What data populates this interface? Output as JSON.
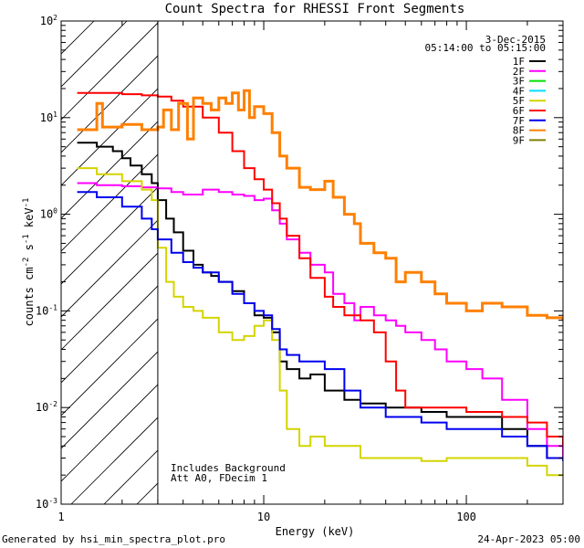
{
  "chart_data": {
    "type": "line",
    "title": "Count Spectra for RHESSI Front Segments",
    "xlabel": "Energy (keV)",
    "ylabel": "counts cm",
    "ylabel_sup1": "-2",
    "ylabel_mid": " s",
    "ylabel_sup2": "-1",
    "ylabel_tail": " keV",
    "ylabel_sup3": "-1",
    "xscale": "log",
    "yscale": "log",
    "xlim": [
      1,
      300
    ],
    "ylim": [
      0.001,
      100
    ],
    "x_ticks": [
      {
        "value": 1,
        "label": "1"
      },
      {
        "value": 10,
        "label": "10"
      },
      {
        "value": 100,
        "label": "100"
      }
    ],
    "y_ticks": [
      {
        "value": 0.001,
        "base": "10",
        "exp": "-3"
      },
      {
        "value": 0.01,
        "base": "10",
        "exp": "-2"
      },
      {
        "value": 0.1,
        "base": "10",
        "exp": "-1"
      },
      {
        "value": 1,
        "base": "10",
        "exp": "0"
      },
      {
        "value": 10,
        "base": "10",
        "exp": "1"
      },
      {
        "value": 100,
        "base": "10",
        "exp": "2"
      }
    ],
    "hatched_region": {
      "from": 1,
      "to": 3
    },
    "date": "3-Dec-2015",
    "time_range": "05:14:00 to 05:15:00",
    "annotations": [
      "Includes Background",
      "Att A0, FDecim 1"
    ],
    "series": [
      {
        "name": "1F",
        "color": "#000000",
        "width": 2,
        "points": [
          [
            1.2,
            5.5
          ],
          [
            1.5,
            5.0
          ],
          [
            1.8,
            4.5
          ],
          [
            2.0,
            3.8
          ],
          [
            2.2,
            3.2
          ],
          [
            2.5,
            2.6
          ],
          [
            2.8,
            2.1
          ],
          [
            3.0,
            1.4
          ],
          [
            3.3,
            0.9
          ],
          [
            3.6,
            0.65
          ],
          [
            4.0,
            0.42
          ],
          [
            4.5,
            0.3
          ],
          [
            5.0,
            0.25
          ],
          [
            5.5,
            0.23
          ],
          [
            6.0,
            0.2
          ],
          [
            7.0,
            0.16
          ],
          [
            8.0,
            0.12
          ],
          [
            9.0,
            0.09
          ],
          [
            10,
            0.085
          ],
          [
            11,
            0.06
          ],
          [
            12,
            0.03
          ],
          [
            13,
            0.025
          ],
          [
            15,
            0.02
          ],
          [
            17,
            0.022
          ],
          [
            20,
            0.015
          ],
          [
            25,
            0.012
          ],
          [
            30,
            0.011
          ],
          [
            40,
            0.01
          ],
          [
            50,
            0.01
          ],
          [
            60,
            0.009
          ],
          [
            80,
            0.008
          ],
          [
            100,
            0.008
          ],
          [
            150,
            0.006
          ],
          [
            200,
            0.004
          ],
          [
            250,
            0.003
          ],
          [
            300,
            0.003
          ]
        ]
      },
      {
        "name": "2F",
        "color": "#ff00ff",
        "width": 2,
        "points": [
          [
            1.2,
            2.1
          ],
          [
            1.5,
            2.0
          ],
          [
            2.0,
            1.95
          ],
          [
            2.5,
            1.9
          ],
          [
            3.0,
            1.85
          ],
          [
            3.5,
            1.7
          ],
          [
            4.0,
            1.6
          ],
          [
            5.0,
            1.8
          ],
          [
            6.0,
            1.7
          ],
          [
            7.0,
            1.6
          ],
          [
            8.0,
            1.55
          ],
          [
            9.0,
            1.4
          ],
          [
            10,
            1.45
          ],
          [
            11,
            1.1
          ],
          [
            12,
            0.8
          ],
          [
            13,
            0.55
          ],
          [
            15,
            0.4
          ],
          [
            17,
            0.3
          ],
          [
            20,
            0.25
          ],
          [
            22,
            0.15
          ],
          [
            25,
            0.12
          ],
          [
            28,
            0.08
          ],
          [
            30,
            0.11
          ],
          [
            35,
            0.09
          ],
          [
            40,
            0.08
          ],
          [
            45,
            0.07
          ],
          [
            50,
            0.06
          ],
          [
            60,
            0.05
          ],
          [
            70,
            0.04
          ],
          [
            80,
            0.03
          ],
          [
            100,
            0.025
          ],
          [
            120,
            0.02
          ],
          [
            150,
            0.012
          ],
          [
            200,
            0.006
          ],
          [
            250,
            0.004
          ],
          [
            300,
            0.003
          ]
        ]
      },
      {
        "name": "3F",
        "color": "#00e000",
        "width": 2,
        "points": []
      },
      {
        "name": "4F",
        "color": "#00e0ff",
        "width": 2,
        "points": []
      },
      {
        "name": "5F",
        "color": "#d4d400",
        "width": 2,
        "points": [
          [
            1.2,
            3.0
          ],
          [
            1.5,
            2.6
          ],
          [
            2.0,
            2.2
          ],
          [
            2.5,
            1.8
          ],
          [
            2.8,
            1.4
          ],
          [
            3.0,
            0.45
          ],
          [
            3.3,
            0.2
          ],
          [
            3.6,
            0.14
          ],
          [
            4.0,
            0.11
          ],
          [
            4.5,
            0.1
          ],
          [
            5.0,
            0.085
          ],
          [
            6.0,
            0.06
          ],
          [
            7.0,
            0.05
          ],
          [
            8.0,
            0.055
          ],
          [
            9.0,
            0.07
          ],
          [
            10,
            0.08
          ],
          [
            11,
            0.05
          ],
          [
            12,
            0.015
          ],
          [
            13,
            0.006
          ],
          [
            15,
            0.004
          ],
          [
            17,
            0.005
          ],
          [
            20,
            0.004
          ],
          [
            25,
            0.004
          ],
          [
            30,
            0.003
          ],
          [
            40,
            0.003
          ],
          [
            50,
            0.003
          ],
          [
            60,
            0.0028
          ],
          [
            80,
            0.003
          ],
          [
            100,
            0.003
          ],
          [
            150,
            0.003
          ],
          [
            200,
            0.0025
          ],
          [
            250,
            0.002
          ],
          [
            300,
            0.002
          ]
        ]
      },
      {
        "name": "6F",
        "color": "#ff0000",
        "width": 2,
        "points": [
          [
            1.2,
            18
          ],
          [
            1.5,
            18
          ],
          [
            2.0,
            17.5
          ],
          [
            2.5,
            17
          ],
          [
            3.0,
            16.5
          ],
          [
            3.5,
            15
          ],
          [
            4.0,
            13
          ],
          [
            5.0,
            10
          ],
          [
            6.0,
            7
          ],
          [
            7.0,
            4.5
          ],
          [
            8.0,
            3.0
          ],
          [
            9.0,
            2.3
          ],
          [
            10,
            1.8
          ],
          [
            11,
            1.3
          ],
          [
            12,
            0.9
          ],
          [
            13,
            0.6
          ],
          [
            15,
            0.35
          ],
          [
            17,
            0.22
          ],
          [
            20,
            0.14
          ],
          [
            22,
            0.11
          ],
          [
            25,
            0.09
          ],
          [
            30,
            0.08
          ],
          [
            35,
            0.06
          ],
          [
            40,
            0.03
          ],
          [
            45,
            0.015
          ],
          [
            50,
            0.01
          ],
          [
            60,
            0.01
          ],
          [
            70,
            0.01
          ],
          [
            80,
            0.01
          ],
          [
            100,
            0.009
          ],
          [
            120,
            0.009
          ],
          [
            150,
            0.008
          ],
          [
            200,
            0.007
          ],
          [
            250,
            0.005
          ],
          [
            300,
            0.004
          ]
        ]
      },
      {
        "name": "7F",
        "color": "#0000ee",
        "width": 2,
        "points": [
          [
            1.2,
            1.7
          ],
          [
            1.5,
            1.5
          ],
          [
            2.0,
            1.2
          ],
          [
            2.5,
            0.9
          ],
          [
            2.8,
            0.7
          ],
          [
            3.0,
            0.55
          ],
          [
            3.5,
            0.4
          ],
          [
            4.0,
            0.32
          ],
          [
            4.5,
            0.28
          ],
          [
            5.0,
            0.25
          ],
          [
            6.0,
            0.2
          ],
          [
            7.0,
            0.15
          ],
          [
            8.0,
            0.12
          ],
          [
            9.0,
            0.1
          ],
          [
            10,
            0.09
          ],
          [
            11,
            0.065
          ],
          [
            12,
            0.04
          ],
          [
            13,
            0.035
          ],
          [
            15,
            0.03
          ],
          [
            17,
            0.03
          ],
          [
            20,
            0.025
          ],
          [
            25,
            0.015
          ],
          [
            30,
            0.01
          ],
          [
            40,
            0.008
          ],
          [
            50,
            0.008
          ],
          [
            60,
            0.007
          ],
          [
            80,
            0.006
          ],
          [
            100,
            0.006
          ],
          [
            150,
            0.005
          ],
          [
            200,
            0.004
          ],
          [
            250,
            0.003
          ],
          [
            300,
            0.0028
          ]
        ]
      },
      {
        "name": "8F",
        "color": "#ff8000",
        "width": 3,
        "points": [
          [
            1.2,
            7.5
          ],
          [
            1.5,
            14
          ],
          [
            1.6,
            8
          ],
          [
            2.0,
            8.5
          ],
          [
            2.5,
            7.5
          ],
          [
            3.0,
            8.0
          ],
          [
            3.2,
            12
          ],
          [
            3.5,
            7.5
          ],
          [
            3.8,
            14
          ],
          [
            4.2,
            6
          ],
          [
            4.5,
            16
          ],
          [
            5.0,
            14
          ],
          [
            5.5,
            12
          ],
          [
            6.0,
            16
          ],
          [
            6.5,
            14
          ],
          [
            7.0,
            18
          ],
          [
            7.5,
            12
          ],
          [
            8.0,
            19
          ],
          [
            8.5,
            10
          ],
          [
            9.0,
            13
          ],
          [
            10,
            11
          ],
          [
            11,
            7
          ],
          [
            12,
            4
          ],
          [
            13,
            3
          ],
          [
            15,
            1.9
          ],
          [
            17,
            1.8
          ],
          [
            20,
            2.2
          ],
          [
            22,
            1.5
          ],
          [
            25,
            1.0
          ],
          [
            28,
            0.8
          ],
          [
            30,
            0.5
          ],
          [
            35,
            0.4
          ],
          [
            40,
            0.35
          ],
          [
            45,
            0.2
          ],
          [
            50,
            0.25
          ],
          [
            60,
            0.2
          ],
          [
            70,
            0.15
          ],
          [
            80,
            0.12
          ],
          [
            100,
            0.1
          ],
          [
            120,
            0.12
          ],
          [
            150,
            0.11
          ],
          [
            200,
            0.09
          ],
          [
            250,
            0.085
          ],
          [
            300,
            0.08
          ]
        ]
      },
      {
        "name": "9F",
        "color": "#808000",
        "width": 2,
        "points": []
      }
    ]
  },
  "footer": {
    "left": "Generated by hsi_min_spectra_plot.pro",
    "right": "24-Apr-2023 05:00"
  }
}
